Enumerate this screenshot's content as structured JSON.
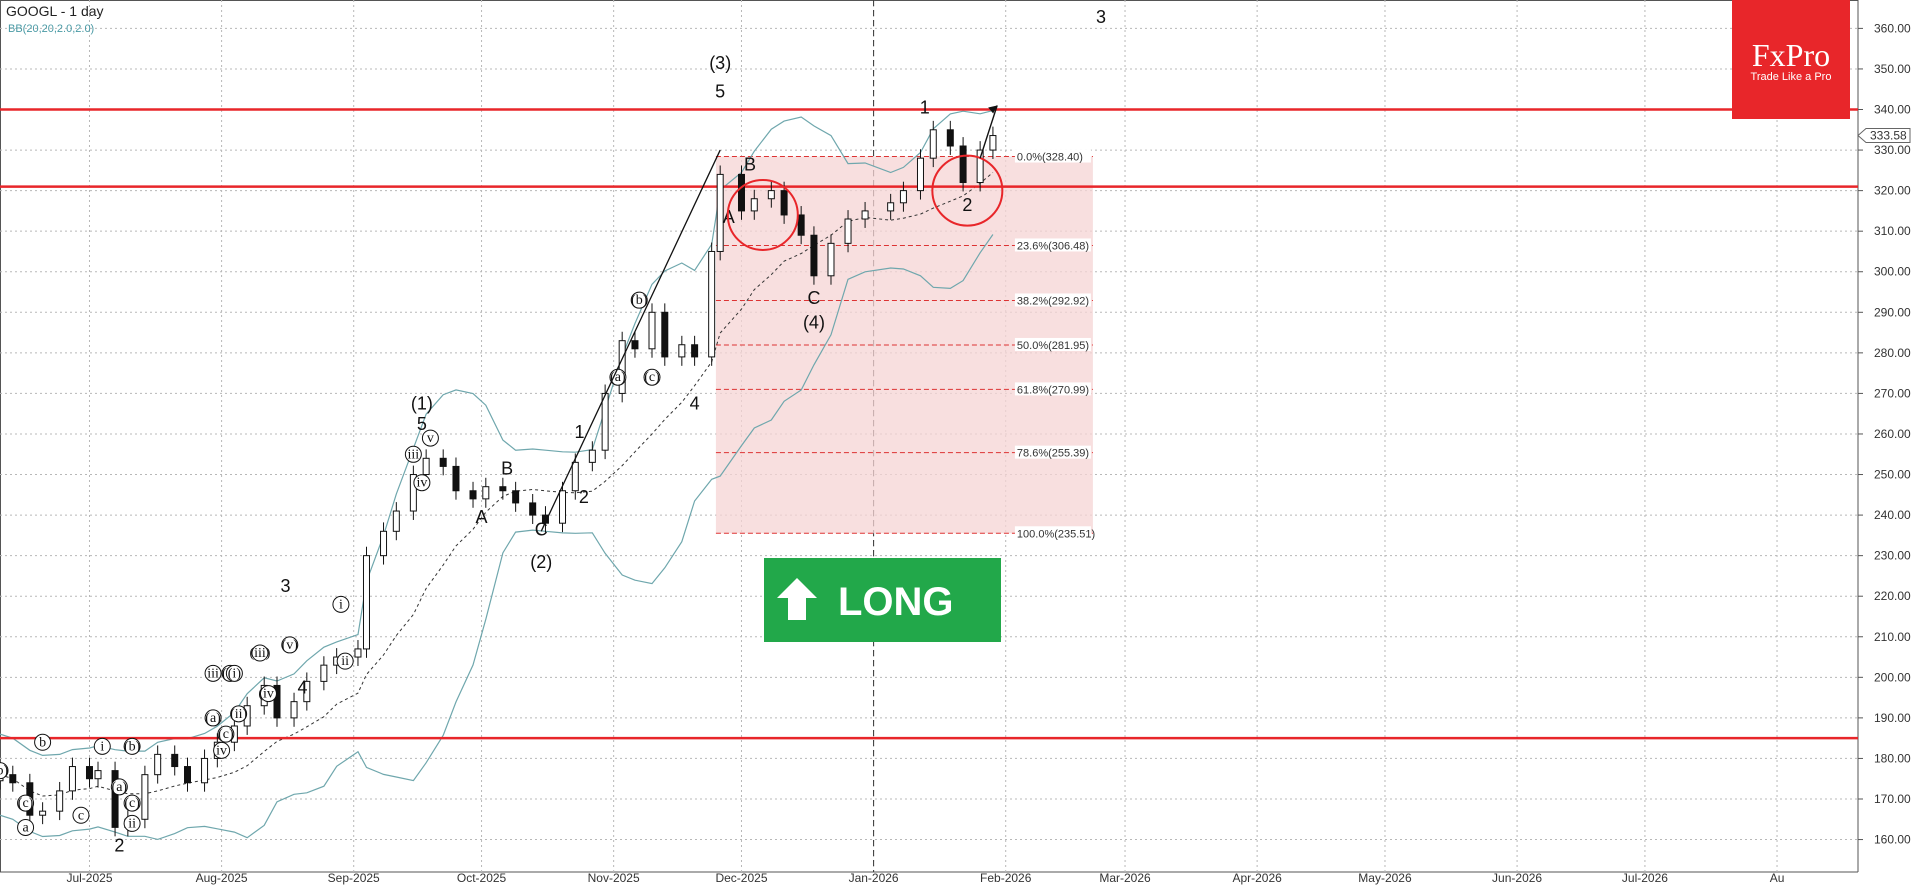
{
  "header": {
    "symbol": "GOOGL - 1 day",
    "indicator": "BB(20,20,2.0,2.0)",
    "corner_label": "3"
  },
  "brand": {
    "name": "FxPro",
    "tagline": "Trade Like a Pro",
    "color": "#e8262a"
  },
  "signal": {
    "label": "LONG",
    "color": "#22a84a"
  },
  "colors": {
    "candle_up": "#ffffff",
    "candle_down": "#111111",
    "band": "#6fa7ad",
    "resistance": "#e8262a",
    "fib_zone": "#f6d4d4"
  },
  "chart_data": {
    "type": "candlestick",
    "title": "GOOGL - 1 day",
    "y_axis": {
      "ylim": [
        152,
        367
      ],
      "ticks": [
        "160.00",
        "170.00",
        "180.00",
        "190.00",
        "200.00",
        "210.00",
        "220.00",
        "230.00",
        "240.00",
        "250.00",
        "260.00",
        "270.00",
        "280.00",
        "290.00",
        "300.00",
        "310.00",
        "320.00",
        "330.00",
        "340.00",
        "350.00",
        "360.00"
      ],
      "last_price": "333.58"
    },
    "x_axis": {
      "start": "2025-06-10",
      "end": "2026-08-20",
      "ticks": [
        {
          "label": "Jul-2025",
          "date": "2025-07-01"
        },
        {
          "label": "Aug-2025",
          "date": "2025-08-01"
        },
        {
          "label": "Sep-2025",
          "date": "2025-09-01"
        },
        {
          "label": "Oct-2025",
          "date": "2025-10-01"
        },
        {
          "label": "Nov-2025",
          "date": "2025-11-01"
        },
        {
          "label": "Dec-2025",
          "date": "2025-12-01"
        },
        {
          "label": "Jan-2026",
          "date": "2026-01-01"
        },
        {
          "label": "Feb-2026",
          "date": "2026-02-01"
        },
        {
          "label": "Mar-2026",
          "date": "2026-03-01"
        },
        {
          "label": "Apr-2026",
          "date": "2026-04-01"
        },
        {
          "label": "May-2026",
          "date": "2026-05-01"
        },
        {
          "label": "Jun-2026",
          "date": "2026-06-01"
        },
        {
          "label": "Jul-2026",
          "date": "2026-07-01"
        },
        {
          "label": "Au",
          "date": "2026-08-01"
        }
      ]
    },
    "horizontal_levels": [
      340,
      321,
      185
    ],
    "fibonacci": {
      "from_date": "2025-11-25",
      "to_date": "2026-01-29",
      "levels": [
        {
          "label": "0.0%(328.40)",
          "value": 328.4
        },
        {
          "label": "23.6%(306.48)",
          "value": 306.48
        },
        {
          "label": "38.2%(292.92)",
          "value": 292.92
        },
        {
          "label": "50.0%(281.95)",
          "value": 281.95
        },
        {
          "label": "61.8%(270.99)",
          "value": 270.99
        },
        {
          "label": "78.6%(255.39)",
          "value": 255.39
        },
        {
          "label": "100.0%(235.51)",
          "value": 235.51
        }
      ]
    },
    "closes": [
      {
        "date": "2025-06-10",
        "close": 176
      },
      {
        "date": "2025-06-13",
        "close": 174
      },
      {
        "date": "2025-06-17",
        "close": 166
      },
      {
        "date": "2025-06-20",
        "close": 167
      },
      {
        "date": "2025-06-24",
        "close": 172
      },
      {
        "date": "2025-06-27",
        "close": 178
      },
      {
        "date": "2025-07-01",
        "close": 175
      },
      {
        "date": "2025-07-03",
        "close": 177
      },
      {
        "date": "2025-07-07",
        "close": 163
      },
      {
        "date": "2025-07-10",
        "close": 165
      },
      {
        "date": "2025-07-14",
        "close": 176
      },
      {
        "date": "2025-07-17",
        "close": 181
      },
      {
        "date": "2025-07-21",
        "close": 178
      },
      {
        "date": "2025-07-24",
        "close": 174
      },
      {
        "date": "2025-07-28",
        "close": 180
      },
      {
        "date": "2025-07-31",
        "close": 184
      },
      {
        "date": "2025-08-04",
        "close": 188
      },
      {
        "date": "2025-08-07",
        "close": 193
      },
      {
        "date": "2025-08-11",
        "close": 198
      },
      {
        "date": "2025-08-14",
        "close": 190
      },
      {
        "date": "2025-08-18",
        "close": 194
      },
      {
        "date": "2025-08-21",
        "close": 199
      },
      {
        "date": "2025-08-25",
        "close": 203
      },
      {
        "date": "2025-08-28",
        "close": 205
      },
      {
        "date": "2025-09-02",
        "close": 207
      },
      {
        "date": "2025-09-04",
        "close": 230
      },
      {
        "date": "2025-09-08",
        "close": 236
      },
      {
        "date": "2025-09-11",
        "close": 241
      },
      {
        "date": "2025-09-15",
        "close": 250
      },
      {
        "date": "2025-09-18",
        "close": 254
      },
      {
        "date": "2025-09-22",
        "close": 252
      },
      {
        "date": "2025-09-25",
        "close": 246
      },
      {
        "date": "2025-09-29",
        "close": 244
      },
      {
        "date": "2025-10-02",
        "close": 247
      },
      {
        "date": "2025-10-06",
        "close": 246
      },
      {
        "date": "2025-10-09",
        "close": 243
      },
      {
        "date": "2025-10-13",
        "close": 240
      },
      {
        "date": "2025-10-16",
        "close": 238
      },
      {
        "date": "2025-10-20",
        "close": 246
      },
      {
        "date": "2025-10-23",
        "close": 253
      },
      {
        "date": "2025-10-27",
        "close": 256
      },
      {
        "date": "2025-10-30",
        "close": 270
      },
      {
        "date": "2025-11-03",
        "close": 283
      },
      {
        "date": "2025-11-06",
        "close": 281
      },
      {
        "date": "2025-11-10",
        "close": 290
      },
      {
        "date": "2025-11-13",
        "close": 279
      },
      {
        "date": "2025-11-17",
        "close": 282
      },
      {
        "date": "2025-11-20",
        "close": 279
      },
      {
        "date": "2025-11-24",
        "close": 305
      },
      {
        "date": "2025-11-26",
        "close": 324
      },
      {
        "date": "2025-12-01",
        "close": 315
      },
      {
        "date": "2025-12-04",
        "close": 318
      },
      {
        "date": "2025-12-08",
        "close": 320
      },
      {
        "date": "2025-12-11",
        "close": 314
      },
      {
        "date": "2025-12-15",
        "close": 309
      },
      {
        "date": "2025-12-18",
        "close": 299
      },
      {
        "date": "2025-12-22",
        "close": 307
      },
      {
        "date": "2025-12-26",
        "close": 313
      },
      {
        "date": "2025-12-30",
        "close": 315
      },
      {
        "date": "2026-01-05",
        "close": 317
      },
      {
        "date": "2026-01-08",
        "close": 320
      },
      {
        "date": "2026-01-12",
        "close": 328
      },
      {
        "date": "2026-01-15",
        "close": 335
      },
      {
        "date": "2026-01-19",
        "close": 331
      },
      {
        "date": "2026-01-22",
        "close": 322
      },
      {
        "date": "2026-01-26",
        "close": 330
      },
      {
        "date": "2026-01-29",
        "close": 333.58
      }
    ],
    "annotations": [
      {
        "text": "(3)",
        "date": "2025-11-26",
        "y": 350,
        "size": "lg"
      },
      {
        "text": "5",
        "date": "2025-11-26",
        "y": 343,
        "size": "lg"
      },
      {
        "text": "B",
        "date": "2025-12-03",
        "y": 325,
        "size": "lg"
      },
      {
        "text": "A",
        "date": "2025-11-28",
        "y": 312,
        "size": "lg"
      },
      {
        "text": "C",
        "date": "2025-12-18",
        "y": 292,
        "size": "lg"
      },
      {
        "text": "(4)",
        "date": "2025-12-18",
        "y": 286,
        "size": "lg"
      },
      {
        "text": "1",
        "date": "2026-01-13",
        "y": 339,
        "size": "lg"
      },
      {
        "text": "2",
        "date": "2026-01-23",
        "y": 315,
        "size": "lg"
      },
      {
        "text": "3",
        "date": "2025-11-07",
        "y": 291,
        "size": "lg"
      },
      {
        "text": "4",
        "date": "2025-11-20",
        "y": 266,
        "size": "lg"
      },
      {
        "text": "(1)",
        "date": "2025-09-17",
        "y": 266,
        "size": "lg"
      },
      {
        "text": "5",
        "date": "2025-09-17",
        "y": 261,
        "size": "lg"
      },
      {
        "text": "B",
        "date": "2025-10-07",
        "y": 250,
        "size": "lg"
      },
      {
        "text": "A",
        "date": "2025-10-01",
        "y": 238,
        "size": "lg"
      },
      {
        "text": "C",
        "date": "2025-10-15",
        "y": 235,
        "size": "lg"
      },
      {
        "text": "(2)",
        "date": "2025-10-15",
        "y": 227,
        "size": "lg"
      },
      {
        "text": "1",
        "date": "2025-10-24",
        "y": 259,
        "size": "lg"
      },
      {
        "text": "2",
        "date": "2025-10-25",
        "y": 243,
        "size": "lg"
      },
      {
        "text": "3",
        "date": "2025-08-16",
        "y": 221,
        "size": "lg"
      },
      {
        "text": "4",
        "date": "2025-08-20",
        "y": 196,
        "size": "lg"
      },
      {
        "text": "2",
        "date": "2025-07-08",
        "y": 157,
        "size": "lg"
      },
      {
        "text": "(a)",
        "date": "2025-11-02",
        "y": 273,
        "size": "sm"
      },
      {
        "text": "(b)",
        "date": "2025-11-07",
        "y": 292,
        "size": "sm"
      },
      {
        "text": "(c)",
        "date": "2025-11-10",
        "y": 273,
        "size": "sm"
      },
      {
        "text": "iii",
        "date": "2025-09-15",
        "y": 254,
        "size": "sm"
      },
      {
        "text": "v",
        "date": "2025-09-19",
        "y": 258,
        "size": "sm"
      },
      {
        "text": "iv",
        "date": "2025-09-17",
        "y": 247,
        "size": "sm"
      },
      {
        "text": "i",
        "date": "2025-08-29",
        "y": 217,
        "size": "sm"
      },
      {
        "text": "ii",
        "date": "2025-08-30",
        "y": 203,
        "size": "sm"
      },
      {
        "text": "(iii)",
        "date": "2025-08-10",
        "y": 205,
        "size": "sm"
      },
      {
        "text": "(iv)",
        "date": "2025-08-12",
        "y": 195,
        "size": "sm"
      },
      {
        "text": "(v)",
        "date": "2025-08-17",
        "y": 207,
        "size": "sm"
      },
      {
        "text": "iii",
        "date": "2025-07-30",
        "y": 200,
        "size": "sm"
      },
      {
        "text": "(a)",
        "date": "2025-07-30",
        "y": 189,
        "size": "sm"
      },
      {
        "text": "(b)",
        "date": "2025-08-03",
        "y": 200,
        "size": "sm"
      },
      {
        "text": "(c)",
        "date": "2025-08-02",
        "y": 185,
        "size": "sm"
      },
      {
        "text": "iv",
        "date": "2025-08-01",
        "y": 181,
        "size": "sm"
      },
      {
        "text": "(i)",
        "date": "2025-08-04",
        "y": 200,
        "size": "sm"
      },
      {
        "text": "(ii)",
        "date": "2025-08-05",
        "y": 190,
        "size": "sm"
      },
      {
        "text": "i",
        "date": "2025-07-04",
        "y": 182,
        "size": "sm"
      },
      {
        "text": "(b)",
        "date": "2025-07-11",
        "y": 182,
        "size": "sm"
      },
      {
        "text": "(a)",
        "date": "2025-07-08",
        "y": 172,
        "size": "sm"
      },
      {
        "text": "(c)",
        "date": "2025-07-11",
        "y": 168,
        "size": "sm"
      },
      {
        "text": "ii",
        "date": "2025-07-11",
        "y": 163,
        "size": "sm"
      },
      {
        "text": "c",
        "date": "2025-06-29",
        "y": 165,
        "size": "sm"
      },
      {
        "text": "b",
        "date": "2025-06-20",
        "y": 183,
        "size": "sm"
      },
      {
        "text": "(b)",
        "date": "2025-06-10",
        "y": 176,
        "size": "sm"
      },
      {
        "text": "(c)",
        "date": "2025-06-16",
        "y": 168,
        "size": "sm"
      },
      {
        "text": "a",
        "date": "2025-06-16",
        "y": 162,
        "size": "sm"
      }
    ]
  }
}
